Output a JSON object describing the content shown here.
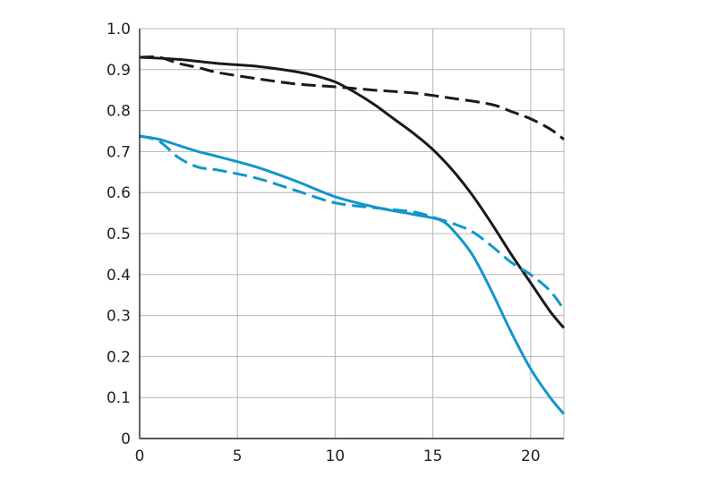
{
  "chart_data": {
    "type": "line",
    "xlim": [
      0,
      21.7
    ],
    "ylim": [
      0,
      1.0
    ],
    "x_ticks": [
      "0",
      "5",
      "10",
      "15",
      "20"
    ],
    "y_ticks": [
      "0",
      "0.1",
      "0.2",
      "0.3",
      "0.4",
      "0.5",
      "0.6",
      "0.7",
      "0.8",
      "0.9",
      "1.0"
    ],
    "grid": true,
    "series": [
      {
        "color": "#1a1a1a",
        "style": "solid",
        "x": [
          0,
          2,
          4,
          6,
          8,
          9,
          10,
          11,
          12,
          13,
          14,
          15,
          16,
          17,
          18,
          19,
          20,
          21,
          21.7
        ],
        "y": [
          0.93,
          0.925,
          0.915,
          0.908,
          0.895,
          0.885,
          0.87,
          0.845,
          0.815,
          0.78,
          0.745,
          0.705,
          0.655,
          0.595,
          0.525,
          0.45,
          0.38,
          0.31,
          0.27
        ]
      },
      {
        "color": "#1a1a1a",
        "style": "dashed",
        "x": [
          0,
          1,
          2,
          3,
          4,
          6,
          8,
          10,
          12,
          14,
          16,
          18,
          19,
          20,
          21,
          21.7
        ],
        "y": [
          0.93,
          0.93,
          0.915,
          0.905,
          0.893,
          0.878,
          0.865,
          0.858,
          0.85,
          0.843,
          0.83,
          0.815,
          0.798,
          0.78,
          0.755,
          0.73
        ]
      },
      {
        "color": "#1296cc",
        "style": "solid",
        "x": [
          0,
          1,
          2,
          3,
          4,
          6,
          8,
          10,
          12,
          14,
          15,
          15.5,
          16,
          17,
          18,
          19,
          20,
          21,
          21.7
        ],
        "y": [
          0.738,
          0.73,
          0.715,
          0.7,
          0.688,
          0.662,
          0.628,
          0.59,
          0.565,
          0.547,
          0.538,
          0.53,
          0.51,
          0.45,
          0.36,
          0.26,
          0.17,
          0.1,
          0.06
        ]
      },
      {
        "color": "#1296cc",
        "style": "dashed",
        "x": [
          0,
          1,
          2,
          3,
          4,
          6,
          8,
          10,
          12,
          14,
          15,
          16,
          17,
          18,
          19,
          20,
          21,
          21.7
        ],
        "y": [
          0.738,
          0.725,
          0.685,
          0.662,
          0.655,
          0.635,
          0.605,
          0.575,
          0.563,
          0.553,
          0.54,
          0.525,
          0.505,
          0.47,
          0.43,
          0.4,
          0.36,
          0.315
        ]
      }
    ]
  }
}
